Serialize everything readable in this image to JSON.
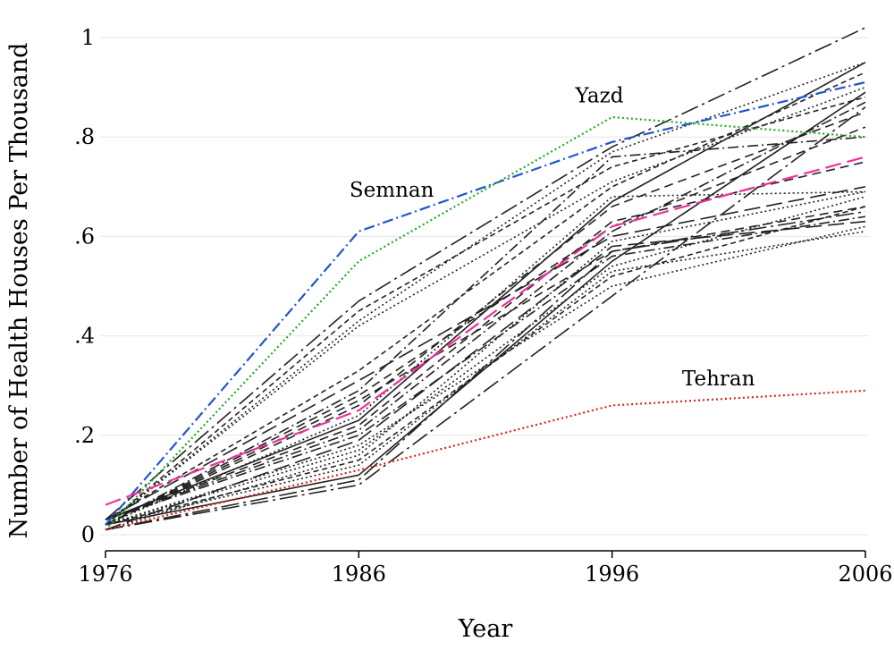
{
  "chart_data": {
    "type": "line",
    "xlabel": "Year",
    "ylabel": "Number of Health Houses Per Thousand",
    "x": [
      1976,
      1986,
      1996,
      2006
    ],
    "x_tick_labels": [
      "1976",
      "1986",
      "1996",
      "2006"
    ],
    "y_ticks": [
      0,
      0.2,
      0.4,
      0.6,
      0.8,
      1
    ],
    "y_tick_labels": [
      "0",
      ".2",
      ".4",
      ".6",
      ".8",
      "1"
    ],
    "xlim": [
      1976,
      2006
    ],
    "ylim": [
      0,
      1
    ],
    "grid": true,
    "legend": "none",
    "annotations": [
      {
        "text": "Yazd",
        "x": 1995.5,
        "y": 0.87
      },
      {
        "text": "Semnan",
        "x": 1987.3,
        "y": 0.68
      },
      {
        "text": "Tehran",
        "x": 2000.2,
        "y": 0.3
      }
    ],
    "series": [
      {
        "values": [
          0.02,
          0.61,
          0.79,
          0.91
        ],
        "color": "#2255cc",
        "style": "dashdot",
        "highlight": true
      },
      {
        "values": [
          0.01,
          0.55,
          0.84,
          0.8
        ],
        "color": "#22aa22",
        "style": "dot",
        "highlight": true
      },
      {
        "values": [
          0.01,
          0.13,
          0.26,
          0.29
        ],
        "color": "#dd2222",
        "style": "dot",
        "highlight": true
      },
      {
        "values": [
          0.06,
          0.25,
          0.62,
          0.76
        ],
        "color": "#ee3399",
        "style": "longdash",
        "highlight": true
      },
      {
        "values": [
          0.03,
          0.47,
          0.78,
          1.02
        ],
        "color": "#222222",
        "style": "longdashdot"
      },
      {
        "values": [
          0.02,
          0.43,
          0.77,
          0.95
        ],
        "color": "#222222",
        "style": "dot"
      },
      {
        "values": [
          0.02,
          0.45,
          0.74,
          0.88
        ],
        "color": "#222222",
        "style": "shortdash"
      },
      {
        "values": [
          0.03,
          0.23,
          0.67,
          0.95
        ],
        "color": "#222222",
        "style": "solid"
      },
      {
        "values": [
          0.02,
          0.12,
          0.55,
          0.89
        ],
        "color": "#222222",
        "style": "solid"
      },
      {
        "values": [
          0.01,
          0.1,
          0.48,
          0.86
        ],
        "color": "#222222",
        "style": "longdashdot"
      },
      {
        "values": [
          0.02,
          0.29,
          0.76,
          0.8
        ],
        "color": "#222222",
        "style": "dashdot"
      },
      {
        "values": [
          0.03,
          0.31,
          0.6,
          0.7
        ],
        "color": "#222222",
        "style": "longdash"
      },
      {
        "values": [
          0.02,
          0.27,
          0.57,
          0.66
        ],
        "color": "#222222",
        "style": "dash"
      },
      {
        "values": [
          0.03,
          0.2,
          0.56,
          0.64
        ],
        "color": "#222222",
        "style": "dashdot"
      },
      {
        "values": [
          0.02,
          0.18,
          0.5,
          0.62
        ],
        "color": "#222222",
        "style": "dot"
      },
      {
        "values": [
          0.01,
          0.16,
          0.59,
          0.69
        ],
        "color": "#222222",
        "style": "dot"
      },
      {
        "values": [
          0.02,
          0.14,
          0.53,
          0.61
        ],
        "color": "#222222",
        "style": "dot"
      },
      {
        "values": [
          0.03,
          0.22,
          0.63,
          0.75
        ],
        "color": "#222222",
        "style": "dash"
      },
      {
        "values": [
          0.02,
          0.26,
          0.66,
          0.85
        ],
        "color": "#222222",
        "style": "dash"
      },
      {
        "values": [
          0.01,
          0.19,
          0.58,
          0.63
        ],
        "color": "#222222",
        "style": "longdash"
      },
      {
        "values": [
          0.02,
          0.15,
          0.52,
          0.66
        ],
        "color": "#222222",
        "style": "shortdash"
      },
      {
        "values": [
          0.03,
          0.21,
          0.61,
          0.87
        ],
        "color": "#222222",
        "style": "dashdot"
      },
      {
        "values": [
          0.02,
          0.17,
          0.54,
          0.68
        ],
        "color": "#222222",
        "style": "dot"
      },
      {
        "values": [
          0.02,
          0.24,
          0.68,
          0.69
        ],
        "color": "#222222",
        "style": "dot"
      },
      {
        "values": [
          0.01,
          0.11,
          0.57,
          0.65
        ],
        "color": "#222222",
        "style": "longdashdot"
      },
      {
        "values": [
          0.02,
          0.28,
          0.62,
          0.82
        ],
        "color": "#222222",
        "style": "dash"
      },
      {
        "values": [
          0.03,
          0.33,
          0.7,
          0.93
        ],
        "color": "#222222",
        "style": "shortdash"
      },
      {
        "values": [
          0.02,
          0.42,
          0.71,
          0.9
        ],
        "color": "#222222",
        "style": "dot"
      }
    ]
  }
}
